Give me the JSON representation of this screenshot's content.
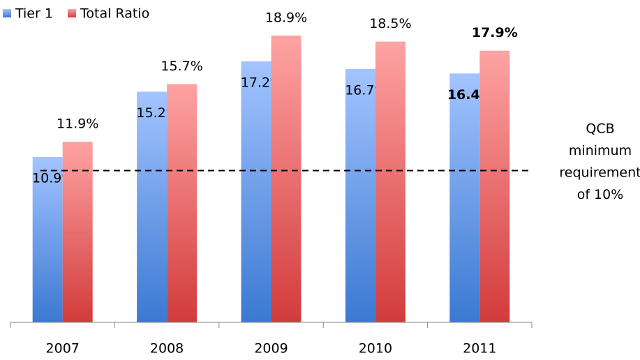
{
  "chart_data": {
    "type": "bar",
    "categories": [
      "2007",
      "2008",
      "2009",
      "2010",
      "2011"
    ],
    "series": [
      {
        "name": "Tier 1",
        "color": "#4a86d8",
        "values": [
          10.9,
          15.2,
          17.2,
          16.7,
          16.4
        ],
        "value_labels": [
          "10.9%",
          "15.2%",
          "17.2%",
          "16.7%",
          "16.4%"
        ]
      },
      {
        "name": "Total Ratio",
        "color": "#d94545",
        "values": [
          11.9,
          15.7,
          18.9,
          18.5,
          17.9
        ],
        "value_labels": [
          "11.9%",
          "15.7%",
          "18.9%",
          "18.5%",
          "17.9%"
        ]
      }
    ],
    "ylim": [
      0,
      20
    ],
    "reference_line": {
      "value": 10,
      "label": [
        "QCB",
        "minimum",
        "requirement",
        "of 10%"
      ]
    }
  }
}
